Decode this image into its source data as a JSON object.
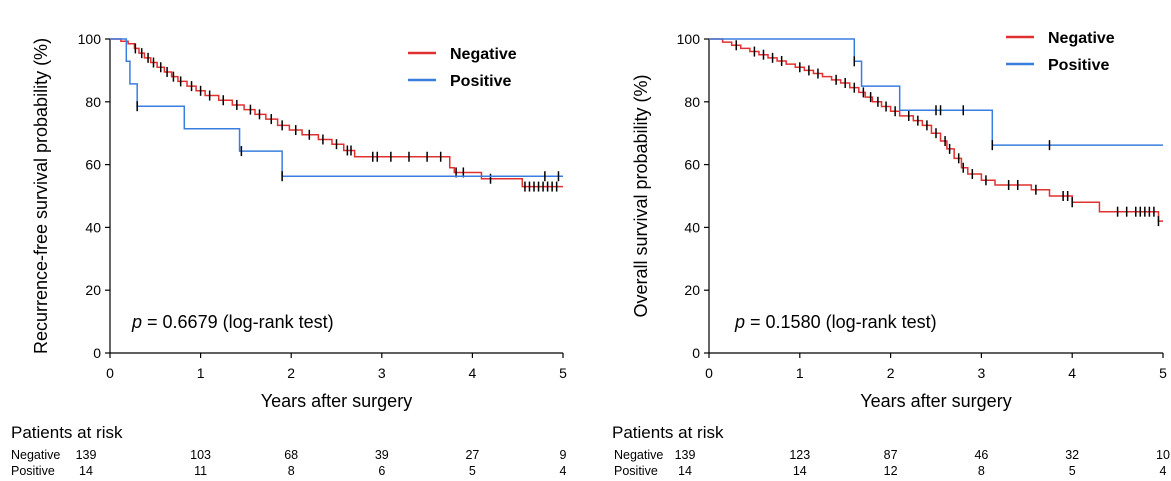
{
  "colors": {
    "negative": "#e03030",
    "positive": "#3a7de0",
    "axis": "#000000",
    "censor": "#000000"
  },
  "risk_table_title": "Patients at risk",
  "chart_data": [
    {
      "type": "line",
      "subtype": "kaplan-meier",
      "ylabel": "Recurrence-free survival probability (%)",
      "xlabel": "Years after surgery",
      "xlim": [
        0,
        5
      ],
      "ylim": [
        0,
        100
      ],
      "xticks": [
        0,
        1,
        2,
        3,
        4,
        5
      ],
      "yticks": [
        0,
        20,
        40,
        60,
        80,
        100
      ],
      "legend_position": "top-right",
      "annotation": {
        "italic": "p",
        "text": " = 0.6679 (log-rank test)"
      },
      "series": [
        {
          "name": "Negative",
          "color_key": "negative",
          "steps": [
            [
              0,
              100
            ],
            [
              0.12,
              99.3
            ],
            [
              0.2,
              98.5
            ],
            [
              0.27,
              97
            ],
            [
              0.32,
              95.5
            ],
            [
              0.38,
              94
            ],
            [
              0.45,
              92.5
            ],
            [
              0.52,
              91
            ],
            [
              0.6,
              89.5
            ],
            [
              0.68,
              88
            ],
            [
              0.75,
              86.5
            ],
            [
              0.85,
              85
            ],
            [
              0.95,
              83.5
            ],
            [
              1.05,
              82
            ],
            [
              1.2,
              80.5
            ],
            [
              1.35,
              79
            ],
            [
              1.48,
              77.5
            ],
            [
              1.6,
              76
            ],
            [
              1.72,
              74.5
            ],
            [
              1.85,
              72.5
            ],
            [
              1.98,
              71
            ],
            [
              2.12,
              69.5
            ],
            [
              2.3,
              68
            ],
            [
              2.45,
              66.5
            ],
            [
              2.58,
              64.5
            ],
            [
              2.7,
              62.5
            ],
            [
              3.75,
              59
            ],
            [
              3.8,
              57.5
            ],
            [
              4.1,
              55.5
            ],
            [
              4.55,
              53
            ]
          ],
          "end": 5,
          "censor": [
            0.28,
            0.35,
            0.42,
            0.48,
            0.56,
            0.63,
            0.7,
            0.78,
            0.9,
            1.0,
            1.1,
            1.25,
            1.4,
            1.55,
            1.65,
            1.78,
            1.9,
            2.05,
            2.2,
            2.35,
            2.5,
            2.62,
            2.66,
            2.9,
            2.95,
            3.1,
            3.3,
            3.5,
            3.65,
            3.82,
            3.9,
            4.2,
            4.58,
            4.63,
            4.68,
            4.73,
            4.78,
            4.83,
            4.88,
            4.93
          ]
        },
        {
          "name": "Positive",
          "color_key": "positive",
          "steps": [
            [
              0,
              100
            ],
            [
              0.18,
              92.9
            ],
            [
              0.22,
              85.7
            ],
            [
              0.3,
              78.6
            ],
            [
              0.82,
              71.4
            ],
            [
              1.43,
              64.3
            ],
            [
              1.9,
              56.3
            ]
          ],
          "end": 5,
          "censor": [
            0.3,
            1.45,
            1.9,
            4.8,
            4.95
          ]
        }
      ],
      "risk_table": {
        "times": [
          0,
          1,
          2,
          3,
          4,
          5
        ],
        "rows": [
          {
            "label": "Negative",
            "values": [
              139,
              103,
              68,
              39,
              27,
              9
            ]
          },
          {
            "label": "Positive",
            "values": [
              14,
              11,
              8,
              6,
              5,
              4
            ]
          }
        ]
      }
    },
    {
      "type": "line",
      "subtype": "kaplan-meier",
      "ylabel": "Overall survival probability (%)",
      "xlabel": "Years after surgery",
      "xlim": [
        0,
        5
      ],
      "ylim": [
        0,
        100
      ],
      "xticks": [
        0,
        1,
        2,
        3,
        4,
        5
      ],
      "yticks": [
        0,
        20,
        40,
        60,
        80,
        100
      ],
      "legend_position": "top-right",
      "annotation": {
        "italic": "p",
        "text": " = 0.1580 (log-rank test)"
      },
      "series": [
        {
          "name": "Negative",
          "color_key": "negative",
          "steps": [
            [
              0,
              100
            ],
            [
              0.15,
              99
            ],
            [
              0.25,
              98
            ],
            [
              0.35,
              97
            ],
            [
              0.45,
              96
            ],
            [
              0.55,
              95
            ],
            [
              0.65,
              94
            ],
            [
              0.75,
              93
            ],
            [
              0.85,
              92
            ],
            [
              0.95,
              91
            ],
            [
              1.05,
              90
            ],
            [
              1.15,
              89
            ],
            [
              1.25,
              88
            ],
            [
              1.35,
              87
            ],
            [
              1.45,
              86
            ],
            [
              1.55,
              84.5
            ],
            [
              1.65,
              83
            ],
            [
              1.72,
              81.5
            ],
            [
              1.8,
              80
            ],
            [
              1.9,
              78.5
            ],
            [
              2.0,
              77
            ],
            [
              2.1,
              75.5
            ],
            [
              2.25,
              74
            ],
            [
              2.35,
              72.5
            ],
            [
              2.45,
              70
            ],
            [
              2.55,
              67.5
            ],
            [
              2.62,
              65
            ],
            [
              2.7,
              62
            ],
            [
              2.78,
              59
            ],
            [
              2.85,
              57
            ],
            [
              3.0,
              55
            ],
            [
              3.15,
              53.5
            ],
            [
              3.55,
              52
            ],
            [
              3.75,
              50
            ],
            [
              4.0,
              48
            ],
            [
              4.3,
              45
            ],
            [
              4.95,
              42
            ]
          ],
          "end": 5,
          "censor": [
            0.3,
            0.5,
            0.6,
            0.7,
            0.8,
            1.0,
            1.1,
            1.2,
            1.4,
            1.5,
            1.6,
            1.7,
            1.78,
            1.86,
            1.95,
            2.05,
            2.2,
            2.3,
            2.4,
            2.5,
            2.6,
            2.65,
            2.75,
            2.8,
            2.9,
            3.05,
            3.3,
            3.4,
            3.6,
            3.9,
            3.95,
            4.0,
            4.5,
            4.6,
            4.7,
            4.75,
            4.8,
            4.85,
            4.9,
            4.95
          ]
        },
        {
          "name": "Positive",
          "color_key": "positive",
          "steps": [
            [
              0,
              100
            ],
            [
              1.6,
              92.9
            ],
            [
              1.68,
              85
            ],
            [
              2.1,
              77.3
            ],
            [
              3.12,
              66.2
            ]
          ],
          "end": 5,
          "censor": [
            1.6,
            2.5,
            2.55,
            2.8,
            3.12,
            3.75
          ]
        }
      ],
      "risk_table": {
        "times": [
          0,
          1,
          2,
          3,
          4,
          5
        ],
        "rows": [
          {
            "label": "Negative",
            "values": [
              139,
              123,
              87,
              46,
              32,
              10
            ]
          },
          {
            "label": "Positive",
            "values": [
              14,
              14,
              12,
              8,
              5,
              4
            ]
          }
        ]
      }
    }
  ]
}
